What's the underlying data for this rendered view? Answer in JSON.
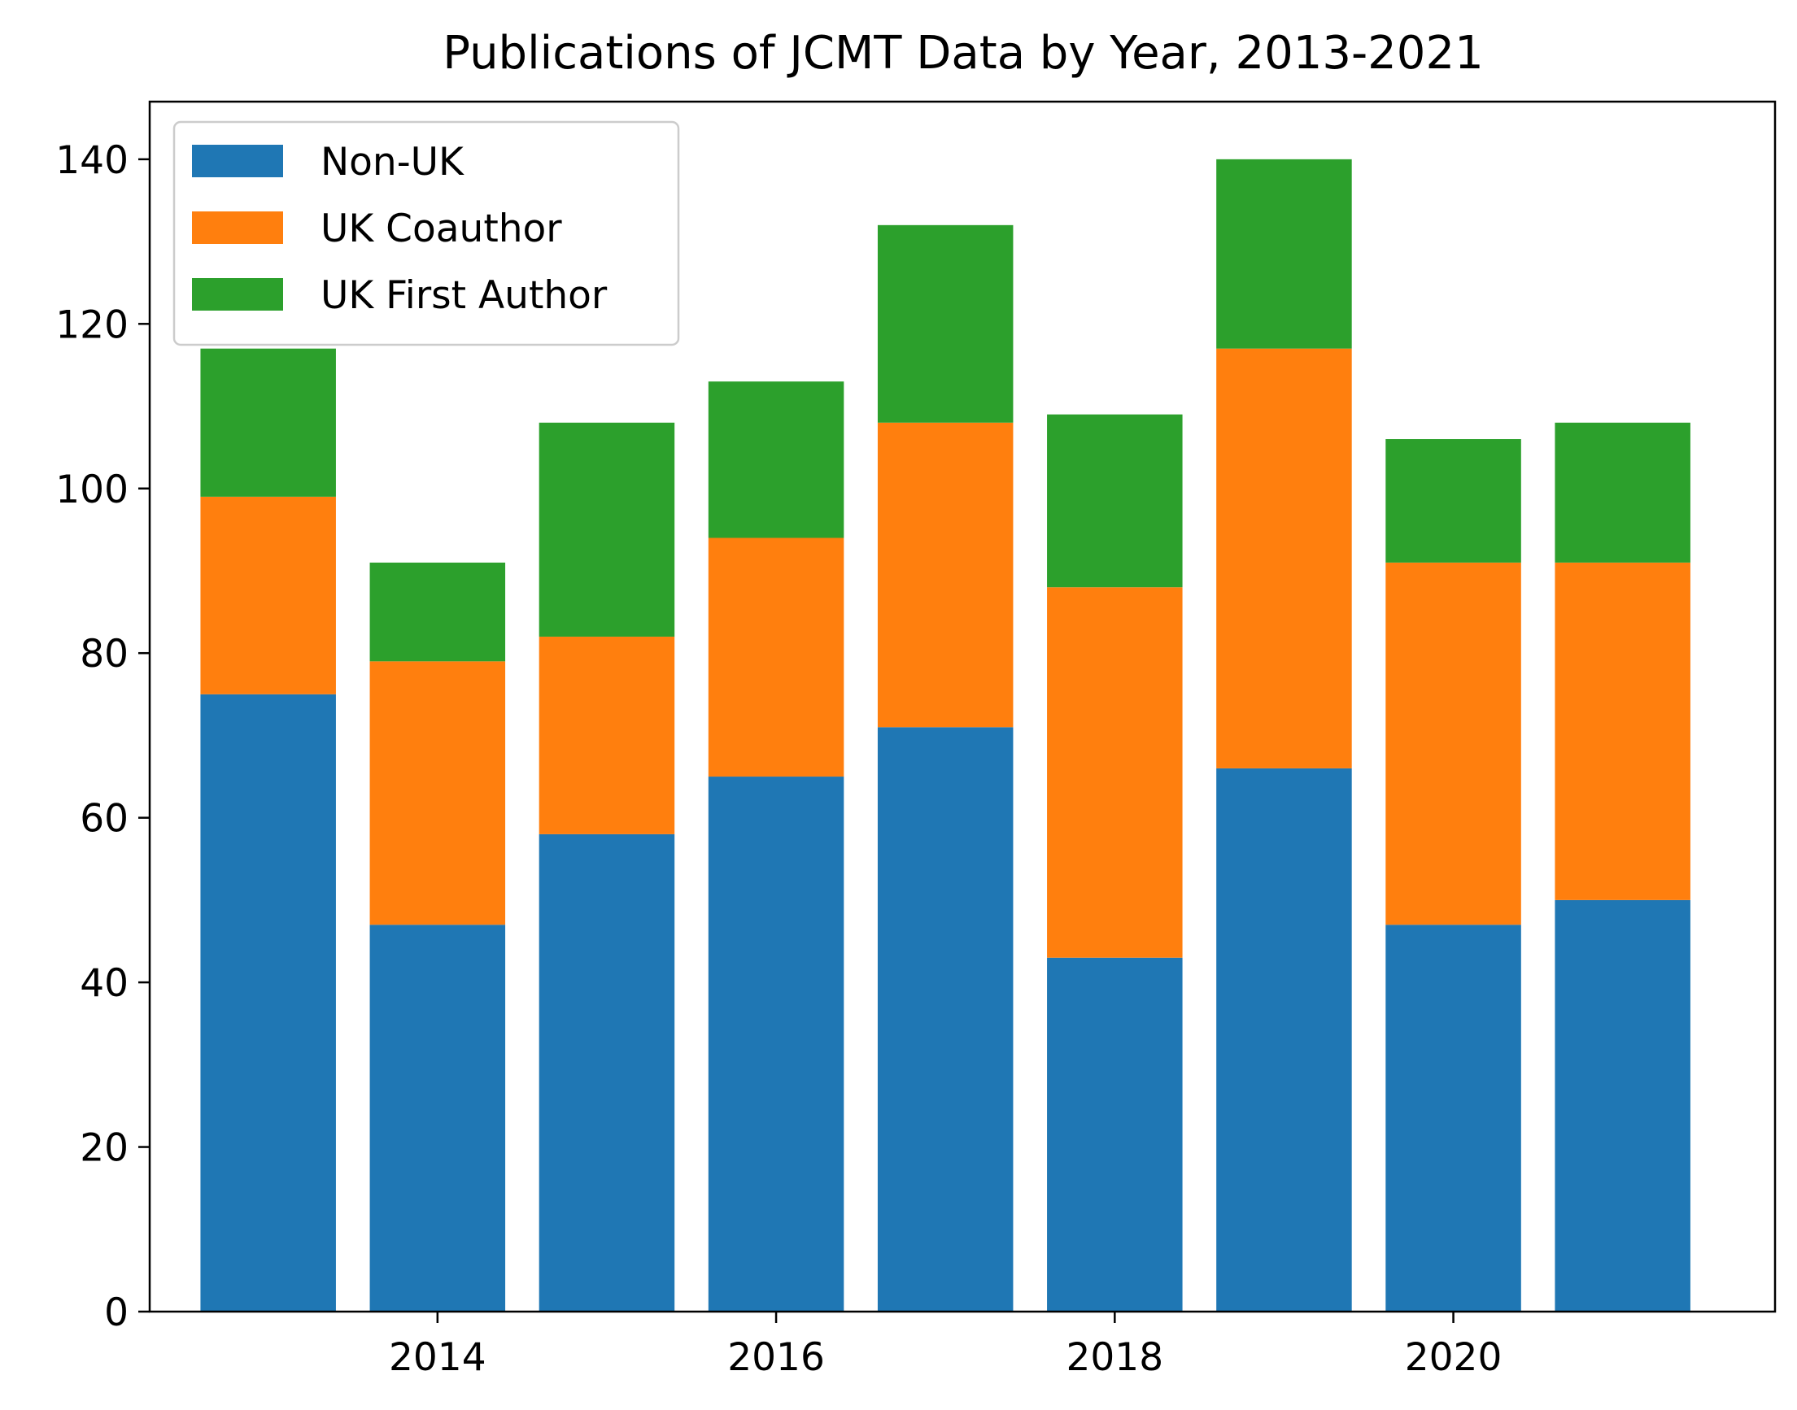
{
  "chart_data": {
    "type": "bar",
    "stacked": true,
    "title": "Publications of JCMT Data by Year, 2013-2021",
    "xlabel": "",
    "ylabel": "",
    "categories": [
      2013,
      2014,
      2015,
      2016,
      2017,
      2018,
      2019,
      2020,
      2021
    ],
    "series": [
      {
        "name": "Non-UK",
        "color": "#1f77b4",
        "values": [
          75,
          47,
          58,
          65,
          71,
          43,
          66,
          47,
          50
        ]
      },
      {
        "name": "UK Coauthor",
        "color": "#ff7f0e",
        "values": [
          24,
          32,
          24,
          29,
          37,
          45,
          51,
          44,
          41
        ]
      },
      {
        "name": "UK First Author",
        "color": "#2ca02c",
        "values": [
          18,
          12,
          26,
          19,
          24,
          21,
          23,
          15,
          17
        ]
      }
    ],
    "xlim": [
      2012.3,
      2021.9
    ],
    "ylim": [
      0,
      147
    ],
    "xticks": [
      2014,
      2016,
      2018,
      2020
    ],
    "yticks": [
      0,
      20,
      40,
      60,
      80,
      100,
      120,
      140
    ],
    "legend_position": "top-left",
    "grid": false
  }
}
